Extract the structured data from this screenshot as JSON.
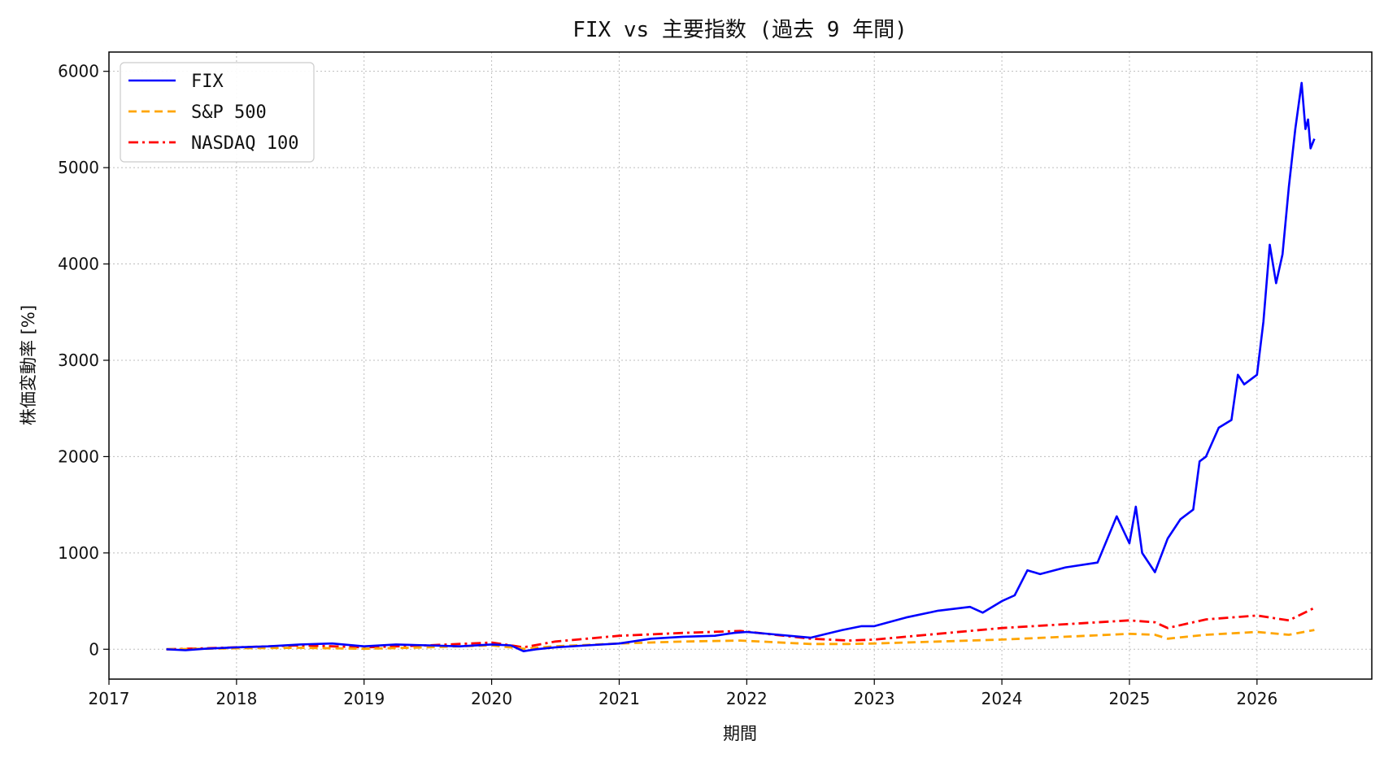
{
  "chart_data": {
    "type": "line",
    "title": "FIX vs 主要指数 (過去 9 年間)",
    "xlabel": "期間",
    "ylabel": "株価変動率 [%]",
    "xlim": [
      2017.0,
      2026.9
    ],
    "ylim": [
      -310,
      6200
    ],
    "x_ticks": [
      2017,
      2018,
      2019,
      2020,
      2021,
      2022,
      2023,
      2024,
      2025,
      2026
    ],
    "x_tick_labels": [
      "2017",
      "2018",
      "2019",
      "2020",
      "2021",
      "2022",
      "2023",
      "2024",
      "2025",
      "2026"
    ],
    "y_ticks": [
      0,
      1000,
      2000,
      3000,
      4000,
      5000,
      6000
    ],
    "y_tick_labels": [
      "0",
      "1000",
      "2000",
      "3000",
      "4000",
      "5000",
      "6000"
    ],
    "grid": true,
    "legend_position": "top-left",
    "series": [
      {
        "name": "FIX",
        "color": "#0000ff",
        "style": "solid",
        "x": [
          2017.45,
          2017.6,
          2017.75,
          2018.0,
          2018.25,
          2018.5,
          2018.75,
          2019.0,
          2019.25,
          2019.5,
          2019.75,
          2020.0,
          2020.15,
          2020.25,
          2020.35,
          2020.5,
          2020.75,
          2021.0,
          2021.25,
          2021.5,
          2021.75,
          2021.9,
          2022.0,
          2022.25,
          2022.5,
          2022.75,
          2022.9,
          2023.0,
          2023.25,
          2023.5,
          2023.75,
          2023.85,
          2024.0,
          2024.1,
          2024.2,
          2024.3,
          2024.5,
          2024.75,
          2024.9,
          2025.0,
          2025.05,
          2025.1,
          2025.2,
          2025.3,
          2025.4,
          2025.5,
          2025.55,
          2025.6,
          2025.7,
          2025.8,
          2025.85,
          2025.9,
          2026.0,
          2026.05,
          2026.1,
          2026.15,
          2026.2,
          2026.25,
          2026.3,
          2026.35,
          2026.38,
          2026.4,
          2026.42,
          2026.45
        ],
        "values": [
          0,
          -10,
          5,
          20,
          30,
          50,
          60,
          30,
          50,
          40,
          30,
          50,
          40,
          -20,
          0,
          20,
          40,
          60,
          110,
          130,
          140,
          170,
          180,
          150,
          120,
          200,
          240,
          240,
          330,
          400,
          440,
          380,
          500,
          560,
          820,
          780,
          850,
          900,
          1380,
          1100,
          1480,
          1000,
          800,
          1150,
          1350,
          1450,
          1950,
          2000,
          2300,
          2380,
          2850,
          2750,
          2850,
          3400,
          4200,
          3800,
          4100,
          4800,
          5400,
          5880,
          5400,
          5500,
          5200,
          5300
        ]
      },
      {
        "name": "S&P 500",
        "color": "#ffa500",
        "style": "dashed",
        "x": [
          2017.45,
          2017.75,
          2018.0,
          2018.5,
          2019.0,
          2019.5,
          2020.0,
          2020.25,
          2020.5,
          2021.0,
          2021.5,
          2021.95,
          2022.5,
          2022.8,
          2023.0,
          2023.5,
          2024.0,
          2024.5,
          2025.0,
          2025.2,
          2025.3,
          2025.6,
          2026.0,
          2026.25,
          2026.45
        ],
        "values": [
          0,
          5,
          10,
          15,
          5,
          20,
          40,
          5,
          30,
          60,
          80,
          90,
          55,
          55,
          60,
          80,
          100,
          130,
          160,
          150,
          110,
          150,
          180,
          150,
          200
        ]
      },
      {
        "name": "NASDAQ 100",
        "color": "#ff0000",
        "style": "dashdot",
        "x": [
          2017.45,
          2017.75,
          2018.0,
          2018.5,
          2019.0,
          2019.5,
          2020.0,
          2020.25,
          2020.5,
          2021.0,
          2021.5,
          2021.95,
          2022.5,
          2022.8,
          2023.0,
          2023.5,
          2024.0,
          2024.5,
          2025.0,
          2025.2,
          2025.3,
          2025.6,
          2026.0,
          2026.25,
          2026.45
        ],
        "values": [
          0,
          10,
          20,
          40,
          20,
          40,
          70,
          20,
          80,
          140,
          170,
          190,
          110,
          90,
          100,
          160,
          220,
          260,
          300,
          280,
          220,
          310,
          350,
          300,
          430
        ]
      }
    ]
  }
}
